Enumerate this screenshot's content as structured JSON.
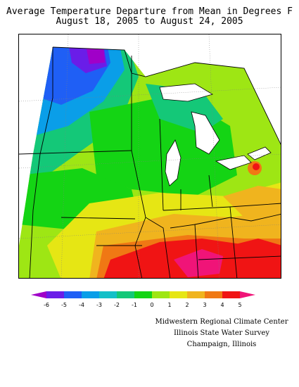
{
  "title": "Average Temperature Departure from Mean in Degrees F",
  "subtitle": "August 18, 2005 to August 24, 2005",
  "legend": {
    "tick_labels": [
      "-6",
      "-5",
      "-4",
      "-3",
      "-2",
      "-1",
      "0",
      "1",
      "2",
      "3",
      "4",
      "5"
    ],
    "colors": [
      "#a000c8",
      "#6a1de8",
      "#1f5ff5",
      "#0a9ee8",
      "#14c0c8",
      "#14c878",
      "#14d414",
      "#9ee614",
      "#e6e614",
      "#f0b41e",
      "#f07814",
      "#f01414",
      "#f01478"
    ]
  },
  "credits": [
    "Midwestern Regional Climate Center",
    "Illinois State Water Survey",
    "Champaign, Illinois"
  ]
}
